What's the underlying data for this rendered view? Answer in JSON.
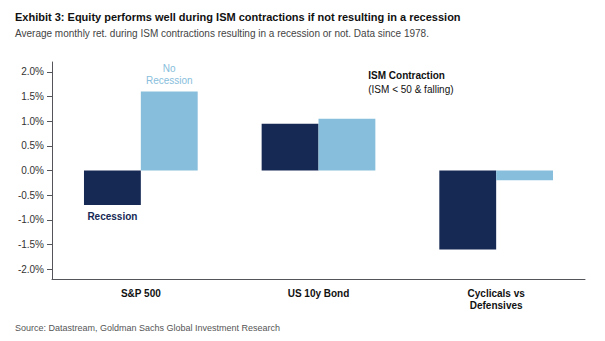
{
  "chart_data": {
    "type": "bar",
    "title": "Exhibit 3: Equity performs well during ISM contractions if not resulting in a recession",
    "subtitle": "Average monthly ret. during ISM contractions resulting in a recession or not. Data since 1978.",
    "source": "Source: Datastream, Goldman Sachs Global Investment Research",
    "categories": [
      "S&P 500",
      "US 10y Bond",
      "Cyclicals vs\nDefensives"
    ],
    "series": [
      {
        "name": "Recession",
        "color": "#162955",
        "values": [
          -0.007,
          0.0095,
          -0.016
        ]
      },
      {
        "name": "No\nRecession",
        "color": "#87BEDC",
        "values": [
          0.016,
          0.0105,
          -0.002
        ]
      }
    ],
    "annotations": [
      "ISM Contraction",
      "(ISM < 50 & falling)"
    ],
    "ylim": [
      -0.022,
      0.022
    ],
    "yticks": [
      {
        "value": -0.02,
        "label": "-2.0%"
      },
      {
        "value": -0.015,
        "label": "-1.5%"
      },
      {
        "value": -0.01,
        "label": "-1.0%"
      },
      {
        "value": -0.005,
        "label": "-0.5%"
      },
      {
        "value": 0.0,
        "label": "0.0%"
      },
      {
        "value": 0.005,
        "label": "0.5%"
      },
      {
        "value": 0.01,
        "label": "1.0%"
      },
      {
        "value": 0.015,
        "label": "1.5%"
      },
      {
        "value": 0.02,
        "label": "2.0%"
      }
    ],
    "grid": false
  }
}
